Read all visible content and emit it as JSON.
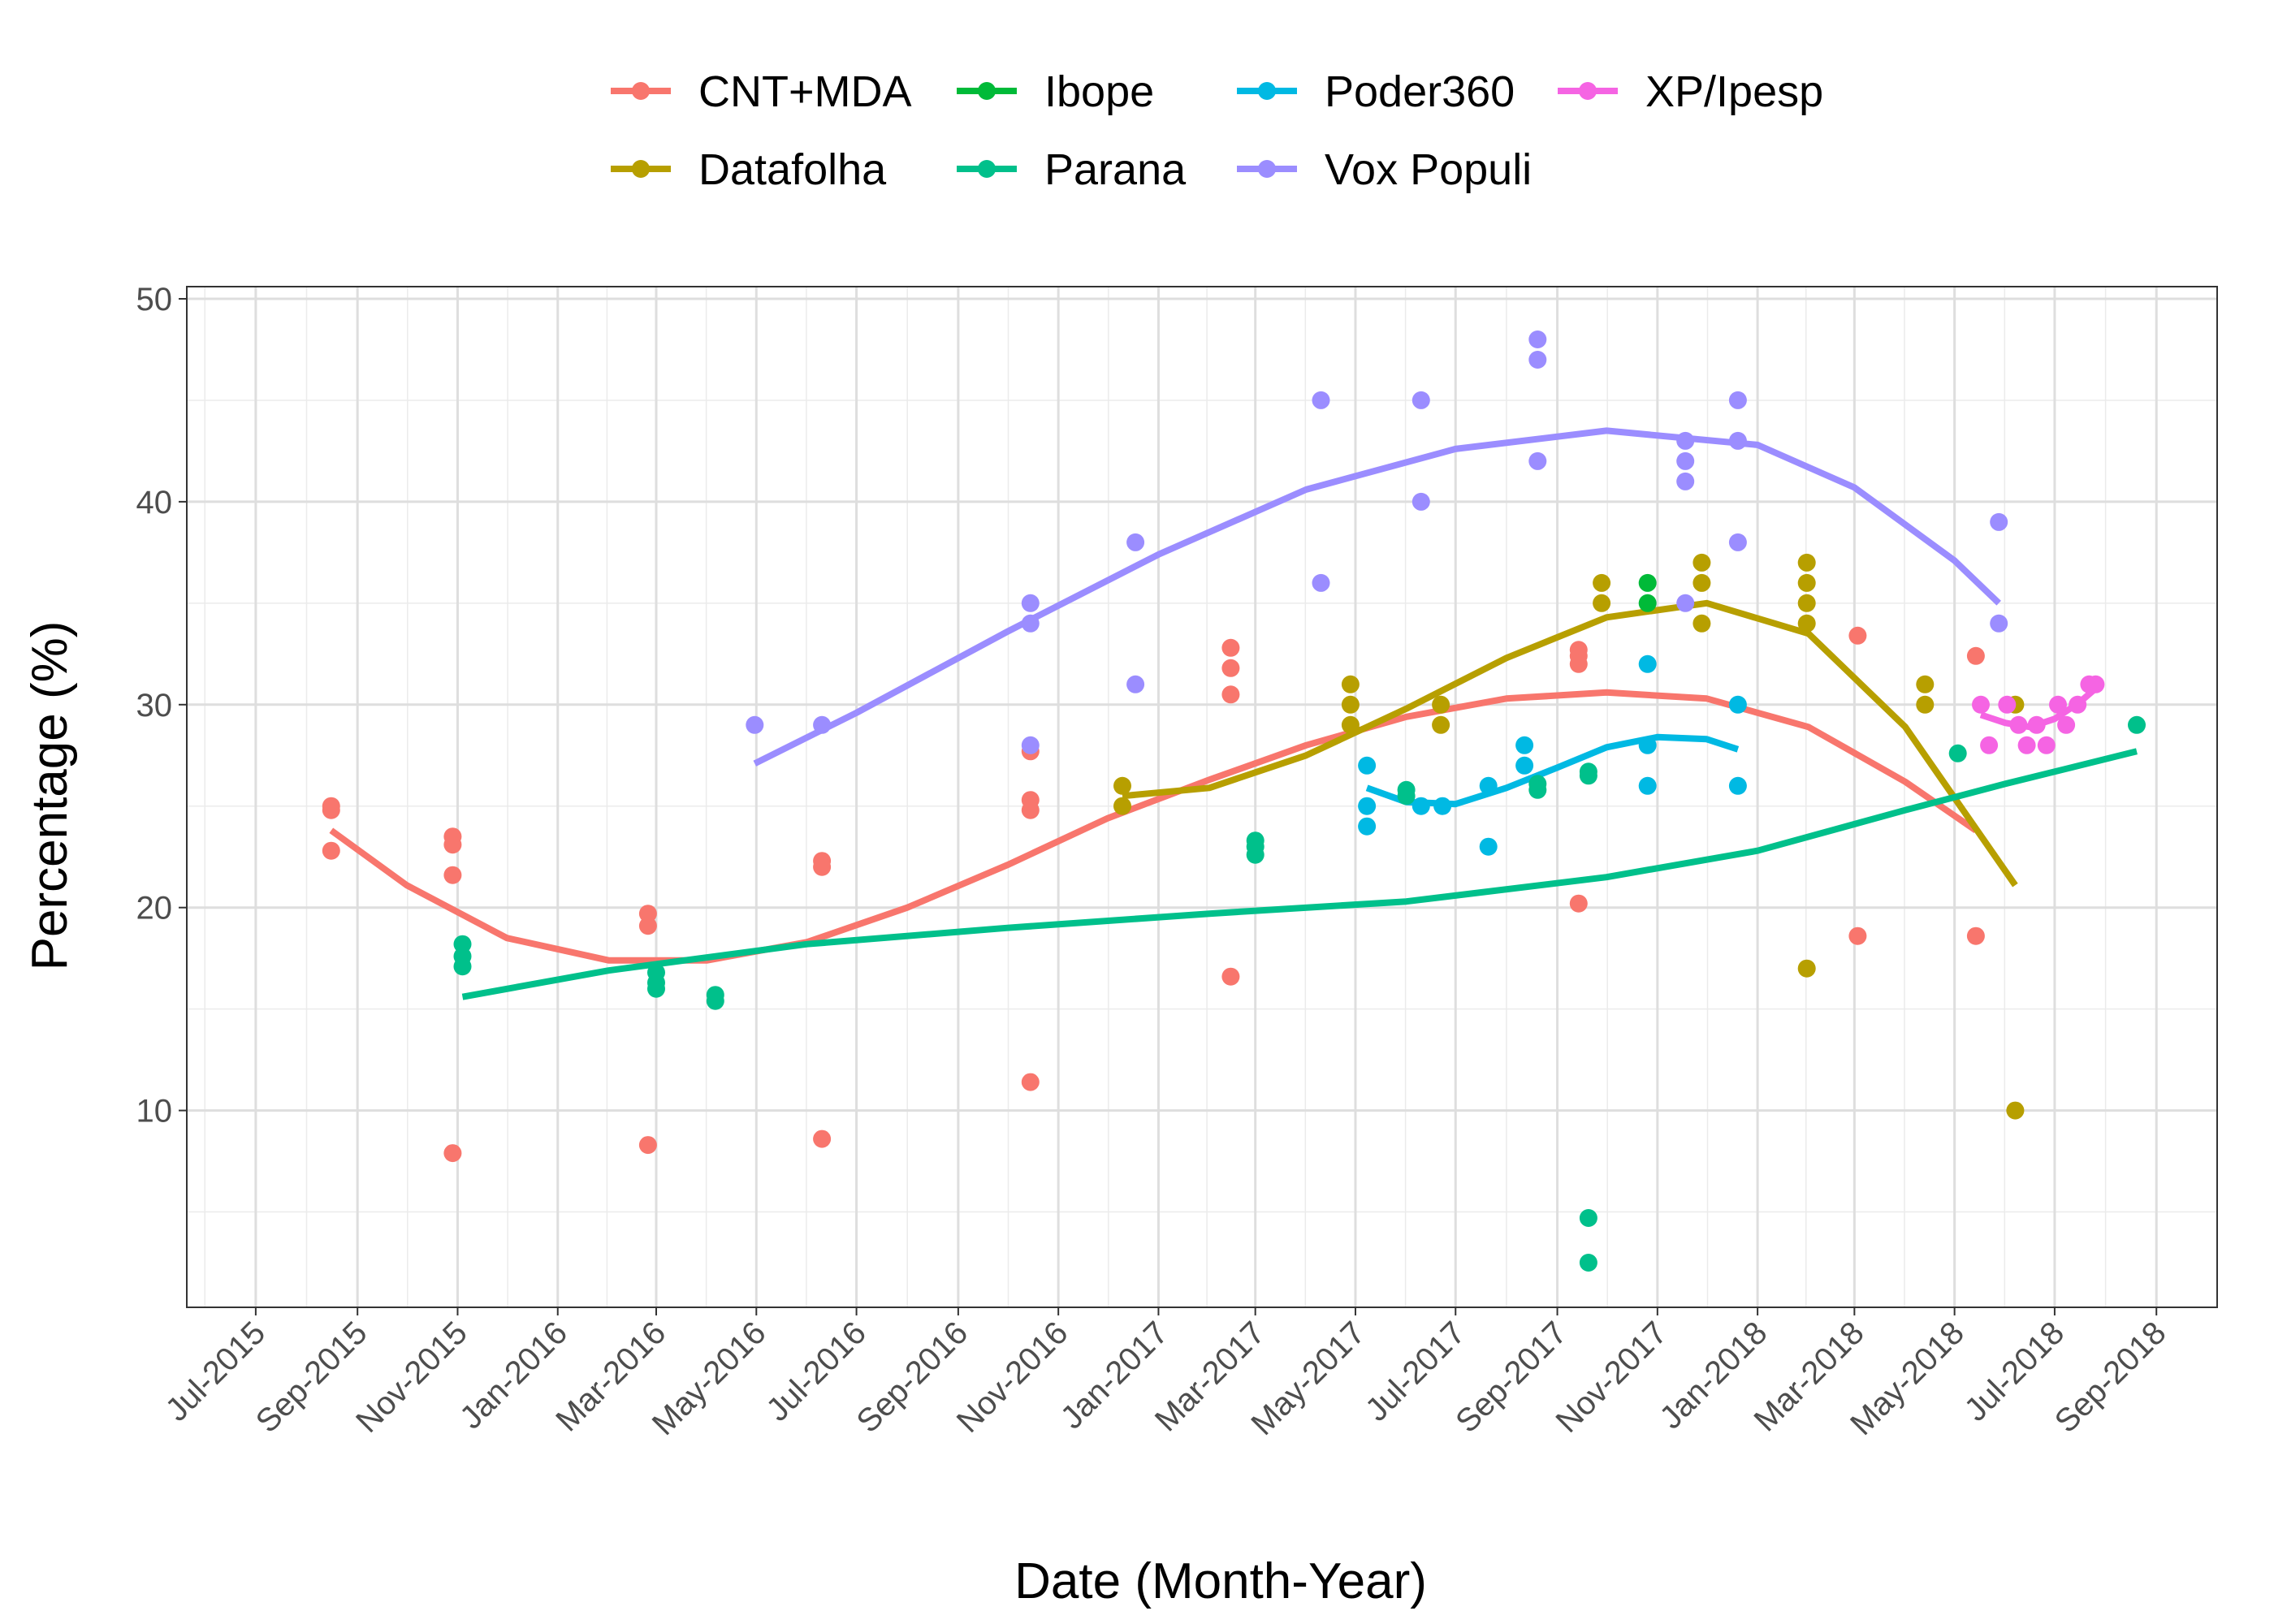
{
  "chart_data": {
    "type": "scatter",
    "xlabel": "Date (Month-Year)",
    "ylabel": "Percentage (%)",
    "xlim": [
      "2015-05-20",
      "2018-10-08"
    ],
    "ylim": [
      0.3,
      50.6
    ],
    "y_ticks": [
      10,
      20,
      30,
      40,
      50
    ],
    "x_ticks": [
      {
        "date": "2015-07-01",
        "label": "Jul-2015"
      },
      {
        "date": "2015-09-01",
        "label": "Sep-2015"
      },
      {
        "date": "2015-11-01",
        "label": "Nov-2015"
      },
      {
        "date": "2016-01-01",
        "label": "Jan-2016"
      },
      {
        "date": "2016-03-01",
        "label": "Mar-2016"
      },
      {
        "date": "2016-05-01",
        "label": "May-2016"
      },
      {
        "date": "2016-07-01",
        "label": "Jul-2016"
      },
      {
        "date": "2016-09-01",
        "label": "Sep-2016"
      },
      {
        "date": "2016-11-01",
        "label": "Nov-2016"
      },
      {
        "date": "2017-01-01",
        "label": "Jan-2017"
      },
      {
        "date": "2017-03-01",
        "label": "Mar-2017"
      },
      {
        "date": "2017-05-01",
        "label": "May-2017"
      },
      {
        "date": "2017-07-01",
        "label": "Jul-2017"
      },
      {
        "date": "2017-09-01",
        "label": "Sep-2017"
      },
      {
        "date": "2017-11-01",
        "label": "Nov-2017"
      },
      {
        "date": "2018-01-01",
        "label": "Jan-2018"
      },
      {
        "date": "2018-03-01",
        "label": "Mar-2018"
      },
      {
        "date": "2018-05-01",
        "label": "May-2018"
      },
      {
        "date": "2018-07-01",
        "label": "Jul-2018"
      },
      {
        "date": "2018-09-01",
        "label": "Sep-2018"
      }
    ],
    "grid": true,
    "legend_position": "top",
    "series": [
      {
        "name": "CNT+MDA",
        "color": "#F8766D",
        "points": [
          [
            "2015-08-16",
            25.0
          ],
          [
            "2015-08-16",
            24.8
          ],
          [
            "2015-08-16",
            22.8
          ],
          [
            "2015-10-29",
            23.5
          ],
          [
            "2015-10-29",
            23.1
          ],
          [
            "2015-10-29",
            21.6
          ],
          [
            "2015-10-29",
            7.9
          ],
          [
            "2016-02-25",
            19.7
          ],
          [
            "2016-02-25",
            19.1
          ],
          [
            "2016-02-25",
            8.3
          ],
          [
            "2016-06-10",
            22.3
          ],
          [
            "2016-06-10",
            22.0
          ],
          [
            "2016-06-10",
            8.6
          ],
          [
            "2016-10-15",
            27.7
          ],
          [
            "2016-10-15",
            25.3
          ],
          [
            "2016-10-15",
            24.8
          ],
          [
            "2016-10-15",
            11.4
          ],
          [
            "2017-02-14",
            32.8
          ],
          [
            "2017-02-14",
            31.8
          ],
          [
            "2017-02-14",
            30.5
          ],
          [
            "2017-02-14",
            16.6
          ],
          [
            "2017-09-14",
            32.7
          ],
          [
            "2017-09-14",
            32.4
          ],
          [
            "2017-09-14",
            32.0
          ],
          [
            "2017-09-14",
            20.2
          ],
          [
            "2018-03-03",
            33.4
          ],
          [
            "2018-03-03",
            18.6
          ],
          [
            "2018-05-14",
            32.4
          ],
          [
            "2018-05-14",
            18.6
          ]
        ],
        "trend": [
          [
            "2015-08-16",
            23.8
          ],
          [
            "2015-10-01",
            21.1
          ],
          [
            "2015-12-01",
            18.5
          ],
          [
            "2016-02-01",
            17.4
          ],
          [
            "2016-04-01",
            17.4
          ],
          [
            "2016-06-01",
            18.3
          ],
          [
            "2016-08-01",
            20.0
          ],
          [
            "2016-10-01",
            22.1
          ],
          [
            "2016-12-01",
            24.4
          ],
          [
            "2017-02-01",
            26.3
          ],
          [
            "2017-04-01",
            28.0
          ],
          [
            "2017-06-01",
            29.4
          ],
          [
            "2017-08-01",
            30.3
          ],
          [
            "2017-10-01",
            30.6
          ],
          [
            "2017-12-01",
            30.3
          ],
          [
            "2018-02-01",
            28.9
          ],
          [
            "2018-04-01",
            26.2
          ],
          [
            "2018-05-14",
            23.8
          ]
        ]
      },
      {
        "name": "Datafolha",
        "color": "#B79F00",
        "points": [
          [
            "2016-12-10",
            26.0
          ],
          [
            "2016-12-10",
            25.0
          ],
          [
            "2017-04-28",
            31.0
          ],
          [
            "2017-04-28",
            30.0
          ],
          [
            "2017-04-28",
            29.0
          ],
          [
            "2017-06-22",
            30.0
          ],
          [
            "2017-06-22",
            29.0
          ],
          [
            "2017-09-28",
            36.0
          ],
          [
            "2017-09-28",
            35.0
          ],
          [
            "2017-11-28",
            37.0
          ],
          [
            "2017-11-28",
            36.0
          ],
          [
            "2017-11-28",
            34.0
          ],
          [
            "2018-01-31",
            37.0
          ],
          [
            "2018-01-31",
            36.0
          ],
          [
            "2018-01-31",
            35.0
          ],
          [
            "2018-01-31",
            34.0
          ],
          [
            "2018-01-31",
            17.0
          ],
          [
            "2018-04-13",
            31.0
          ],
          [
            "2018-04-13",
            30.0
          ],
          [
            "2018-06-07",
            30.0
          ],
          [
            "2018-06-07",
            10.0
          ]
        ],
        "trend": [
          [
            "2016-12-10",
            25.5
          ],
          [
            "2017-02-01",
            25.9
          ],
          [
            "2017-04-01",
            27.5
          ],
          [
            "2017-06-01",
            29.8
          ],
          [
            "2017-08-01",
            32.3
          ],
          [
            "2017-10-01",
            34.3
          ],
          [
            "2017-12-01",
            35.0
          ],
          [
            "2018-02-01",
            33.5
          ],
          [
            "2018-04-01",
            28.9
          ],
          [
            "2018-06-07",
            21.1
          ]
        ]
      },
      {
        "name": "Ibope",
        "color": "#00BA38",
        "points": [
          [
            "2017-10-26",
            36.0
          ],
          [
            "2017-10-26",
            35.0
          ]
        ],
        "trend": []
      },
      {
        "name": "Parana",
        "color": "#00C08B",
        "points": [
          [
            "2015-11-04",
            18.2
          ],
          [
            "2015-11-04",
            17.6
          ],
          [
            "2015-11-04",
            17.1
          ],
          [
            "2016-03-01",
            16.8
          ],
          [
            "2016-03-01",
            16.3
          ],
          [
            "2016-03-01",
            16.0
          ],
          [
            "2016-04-06",
            15.7
          ],
          [
            "2016-04-06",
            15.4
          ],
          [
            "2017-03-01",
            23.3
          ],
          [
            "2017-03-01",
            23.0
          ],
          [
            "2017-03-01",
            22.6
          ],
          [
            "2017-06-01",
            25.8
          ],
          [
            "2017-06-01",
            25.5
          ],
          [
            "2017-08-20",
            26.1
          ],
          [
            "2017-08-20",
            25.8
          ],
          [
            "2017-09-20",
            26.7
          ],
          [
            "2017-09-20",
            26.5
          ],
          [
            "2017-09-20",
            4.7
          ],
          [
            "2017-09-20",
            2.5
          ],
          [
            "2018-05-03",
            27.6
          ],
          [
            "2018-08-20",
            29.0
          ]
        ],
        "trend": [
          [
            "2015-11-04",
            15.6
          ],
          [
            "2016-02-01",
            16.9
          ],
          [
            "2016-06-01",
            18.2
          ],
          [
            "2016-10-01",
            19.0
          ],
          [
            "2017-02-01",
            19.7
          ],
          [
            "2017-06-01",
            20.3
          ],
          [
            "2017-10-01",
            21.5
          ],
          [
            "2018-01-01",
            22.8
          ],
          [
            "2018-04-01",
            24.8
          ],
          [
            "2018-06-01",
            26.1
          ],
          [
            "2018-08-20",
            27.7
          ]
        ]
      },
      {
        "name": "Poder360",
        "color": "#00B9E3",
        "points": [
          [
            "2017-05-08",
            27.0
          ],
          [
            "2017-05-08",
            25.0
          ],
          [
            "2017-05-08",
            24.0
          ],
          [
            "2017-06-10",
            25.0
          ],
          [
            "2017-06-23",
            25.0
          ],
          [
            "2017-07-21",
            26.0
          ],
          [
            "2017-07-21",
            23.0
          ],
          [
            "2017-08-12",
            28.0
          ],
          [
            "2017-08-12",
            27.0
          ],
          [
            "2017-10-26",
            32.0
          ],
          [
            "2017-10-26",
            28.0
          ],
          [
            "2017-10-26",
            26.0
          ],
          [
            "2017-12-20",
            30.0
          ],
          [
            "2017-12-20",
            26.0
          ]
        ],
        "trend": [
          [
            "2017-05-08",
            25.9
          ],
          [
            "2017-06-01",
            25.2
          ],
          [
            "2017-07-01",
            25.1
          ],
          [
            "2017-08-01",
            25.9
          ],
          [
            "2017-09-01",
            26.9
          ],
          [
            "2017-10-01",
            27.9
          ],
          [
            "2017-11-01",
            28.4
          ],
          [
            "2017-12-01",
            28.3
          ],
          [
            "2017-12-20",
            27.8
          ]
        ]
      },
      {
        "name": "Vox Populi",
        "color": "#9B8DFF",
        "points": [
          [
            "2016-04-30",
            29.0
          ],
          [
            "2016-06-10",
            29.0
          ],
          [
            "2016-10-15",
            35.0
          ],
          [
            "2016-10-15",
            34.0
          ],
          [
            "2016-10-15",
            28.0
          ],
          [
            "2016-12-18",
            38.0
          ],
          [
            "2016-12-18",
            31.0
          ],
          [
            "2017-04-10",
            45.0
          ],
          [
            "2017-04-10",
            36.0
          ],
          [
            "2017-06-10",
            45.0
          ],
          [
            "2017-06-10",
            40.0
          ],
          [
            "2017-08-20",
            48.0
          ],
          [
            "2017-08-20",
            47.0
          ],
          [
            "2017-08-20",
            42.0
          ],
          [
            "2017-11-18",
            43.0
          ],
          [
            "2017-11-18",
            42.0
          ],
          [
            "2017-11-18",
            41.0
          ],
          [
            "2017-11-18",
            35.0
          ],
          [
            "2017-12-20",
            45.0
          ],
          [
            "2017-12-20",
            43.0
          ],
          [
            "2017-12-20",
            38.0
          ],
          [
            "2018-05-28",
            39.0
          ],
          [
            "2018-05-28",
            34.0
          ]
        ],
        "trend": [
          [
            "2016-04-30",
            27.1
          ],
          [
            "2016-07-01",
            29.6
          ],
          [
            "2016-10-01",
            33.6
          ],
          [
            "2017-01-01",
            37.4
          ],
          [
            "2017-04-01",
            40.6
          ],
          [
            "2017-07-01",
            42.6
          ],
          [
            "2017-10-01",
            43.5
          ],
          [
            "2018-01-01",
            42.8
          ],
          [
            "2018-03-01",
            40.7
          ],
          [
            "2018-05-01",
            37.1
          ],
          [
            "2018-05-28",
            35.0
          ]
        ]
      },
      {
        "name": "XP/Ipesp",
        "color": "#F564E3",
        "points": [
          [
            "2018-05-17",
            30.0
          ],
          [
            "2018-05-22",
            28.0
          ],
          [
            "2018-06-02",
            30.0
          ],
          [
            "2018-06-09",
            29.0
          ],
          [
            "2018-06-14",
            28.0
          ],
          [
            "2018-06-20",
            29.0
          ],
          [
            "2018-06-26",
            28.0
          ],
          [
            "2018-07-03",
            30.0
          ],
          [
            "2018-07-08",
            29.0
          ],
          [
            "2018-07-15",
            30.0
          ],
          [
            "2018-07-22",
            31.0
          ],
          [
            "2018-07-26",
            31.0
          ]
        ],
        "trend": [
          [
            "2018-05-17",
            29.5
          ],
          [
            "2018-06-01",
            29.1
          ],
          [
            "2018-06-16",
            28.9
          ],
          [
            "2018-07-01",
            29.3
          ],
          [
            "2018-07-16",
            30.1
          ],
          [
            "2018-07-26",
            30.8
          ]
        ]
      }
    ]
  },
  "legend": {
    "rows": [
      [
        "CNT+MDA",
        "Ibope",
        "Poder360",
        "XP/Ipesp"
      ],
      [
        "Datafolha",
        "Parana",
        "Vox Populi"
      ]
    ]
  }
}
